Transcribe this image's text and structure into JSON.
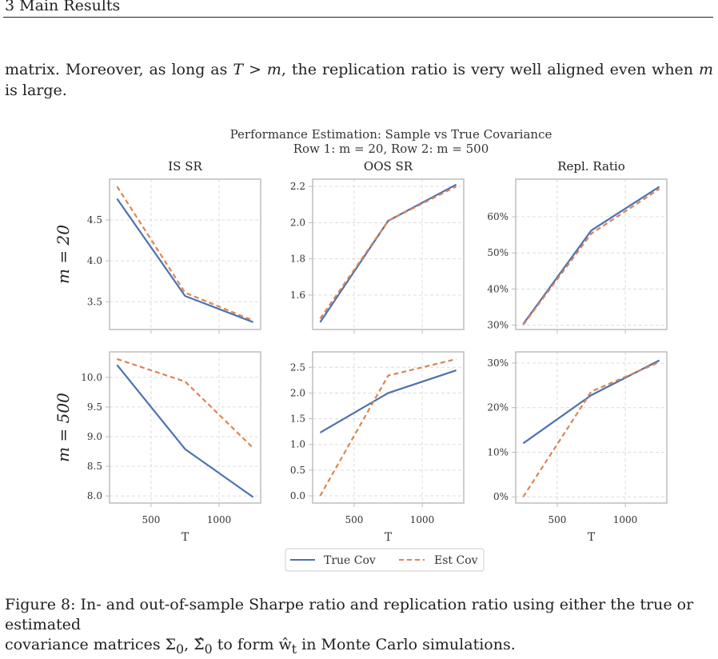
{
  "header": {
    "section": "3 Main Results"
  },
  "paragraph": {
    "part1": "matrix.  Moreover, as long as ",
    "cond_T": "T",
    "cond_gt": " > ",
    "cond_m": "m",
    "part2": ", the replication ratio is very well aligned even when ",
    "cond_m2": "m",
    "part3": " is large."
  },
  "figure": {
    "suptitle_line1": "Performance Estimation: Sample vs True Covariance",
    "suptitle_line2": "Row 1: m = 20, Row 2: m = 500",
    "column_titles": [
      "IS SR",
      "OOS SR",
      "Repl. Ratio"
    ],
    "row_labels": [
      "m = 20",
      "m = 500"
    ],
    "xlabel": "T",
    "legend": [
      "True Cov",
      "Est Cov"
    ],
    "colors": {
      "true": "#4c72b0",
      "est": "#dd8452",
      "frame": "#bdbdbd",
      "grid": "#dcdcdc"
    }
  },
  "chart_data": [
    {
      "type": "line",
      "row": 0,
      "col": 0,
      "title": "IS SR",
      "ylabel": "m = 20",
      "xlabel": "",
      "x": [
        250,
        750,
        1250
      ],
      "xticks": [
        500,
        1000
      ],
      "xlim": [
        195,
        1305
      ],
      "yticks": [
        3.5,
        4.0,
        4.5
      ],
      "yticklabels": [
        "3.5",
        "4.0",
        "4.5"
      ],
      "ylim": [
        3.16,
        5.0
      ],
      "series": [
        {
          "name": "True Cov",
          "values": [
            4.76,
            3.57,
            3.25
          ]
        },
        {
          "name": "Est Cov",
          "values": [
            4.91,
            3.61,
            3.27
          ]
        }
      ]
    },
    {
      "type": "line",
      "row": 0,
      "col": 1,
      "title": "OOS SR",
      "xlabel": "",
      "x": [
        250,
        750,
        1250
      ],
      "xticks": [
        500,
        1000
      ],
      "xlim": [
        195,
        1305
      ],
      "yticks": [
        1.6,
        1.8,
        2.0,
        2.2
      ],
      "yticklabels": [
        "1.6",
        "1.8",
        "2.0",
        "2.2"
      ],
      "ylim": [
        1.41,
        2.24
      ],
      "series": [
        {
          "name": "True Cov",
          "values": [
            1.45,
            2.01,
            2.21
          ]
        },
        {
          "name": "Est Cov",
          "values": [
            1.47,
            2.01,
            2.2
          ]
        }
      ]
    },
    {
      "type": "line",
      "row": 0,
      "col": 2,
      "title": "Repl. Ratio",
      "xlabel": "",
      "x": [
        250,
        750,
        1250
      ],
      "xticks": [
        500,
        1000
      ],
      "xlim": [
        195,
        1305
      ],
      "yticks": [
        30,
        40,
        50,
        60
      ],
      "yticklabels": [
        "30%",
        "40%",
        "50%",
        "60%"
      ],
      "ylim": [
        28.8,
        70.4
      ],
      "series": [
        {
          "name": "True Cov",
          "values": [
            30.3,
            56.2,
            68.3
          ]
        },
        {
          "name": "Est Cov",
          "values": [
            30.1,
            55.3,
            67.7
          ]
        }
      ]
    },
    {
      "type": "line",
      "row": 1,
      "col": 0,
      "title": "",
      "ylabel": "m = 500",
      "xlabel": "T",
      "x": [
        250,
        750,
        1250
      ],
      "xticks": [
        500,
        1000
      ],
      "xticklabels": [
        "500",
        "1000"
      ],
      "xlim": [
        195,
        1305
      ],
      "yticks": [
        8.0,
        8.5,
        9.0,
        9.5,
        10.0
      ],
      "yticklabels": [
        "8.0",
        "8.5",
        "9.0",
        "9.5",
        "10.0"
      ],
      "ylim": [
        7.88,
        10.43
      ],
      "series": [
        {
          "name": "True Cov",
          "values": [
            10.21,
            8.79,
            7.98
          ]
        },
        {
          "name": "Est Cov",
          "values": [
            10.31,
            9.93,
            8.81
          ]
        }
      ]
    },
    {
      "type": "line",
      "row": 1,
      "col": 1,
      "title": "",
      "xlabel": "T",
      "x": [
        250,
        750,
        1250
      ],
      "xticks": [
        500,
        1000
      ],
      "xticklabels": [
        "500",
        "1000"
      ],
      "xlim": [
        195,
        1305
      ],
      "yticks": [
        0.0,
        0.5,
        1.0,
        1.5,
        2.0,
        2.5
      ],
      "yticklabels": [
        "0.0",
        "0.5",
        "1.0",
        "1.5",
        "2.0",
        "2.5"
      ],
      "ylim": [
        -0.14,
        2.8
      ],
      "series": [
        {
          "name": "True Cov",
          "values": [
            1.23,
            2.0,
            2.44
          ]
        },
        {
          "name": "Est Cov",
          "values": [
            0.0,
            2.34,
            2.66
          ]
        }
      ]
    },
    {
      "type": "line",
      "row": 1,
      "col": 2,
      "title": "",
      "xlabel": "T",
      "x": [
        250,
        750,
        1250
      ],
      "xticks": [
        500,
        1000
      ],
      "xticklabels": [
        "500",
        "1000"
      ],
      "xlim": [
        195,
        1305
      ],
      "yticks": [
        0,
        10,
        20,
        30
      ],
      "yticklabels": [
        "0%",
        "10%",
        "20%",
        "30%"
      ],
      "ylim": [
        -1.4,
        32.5
      ],
      "series": [
        {
          "name": "True Cov",
          "values": [
            12.0,
            22.8,
            30.6
          ]
        },
        {
          "name": "Est Cov",
          "values": [
            0.0,
            23.6,
            30.2
          ]
        }
      ]
    }
  ],
  "caption": {
    "text1": "Figure 8: In- and out-of-sample Sharpe ratio and replication ratio using either the true or estimated",
    "text2": "covariance matrices Σ",
    "sub1": "0",
    "sep": ", ",
    "hat_sigma": "Σ̂",
    "sub2": "0",
    "text3": " to form ",
    "hat_w": "ŵ",
    "sub3": "t",
    "text4": " in Monte Carlo simulations."
  }
}
